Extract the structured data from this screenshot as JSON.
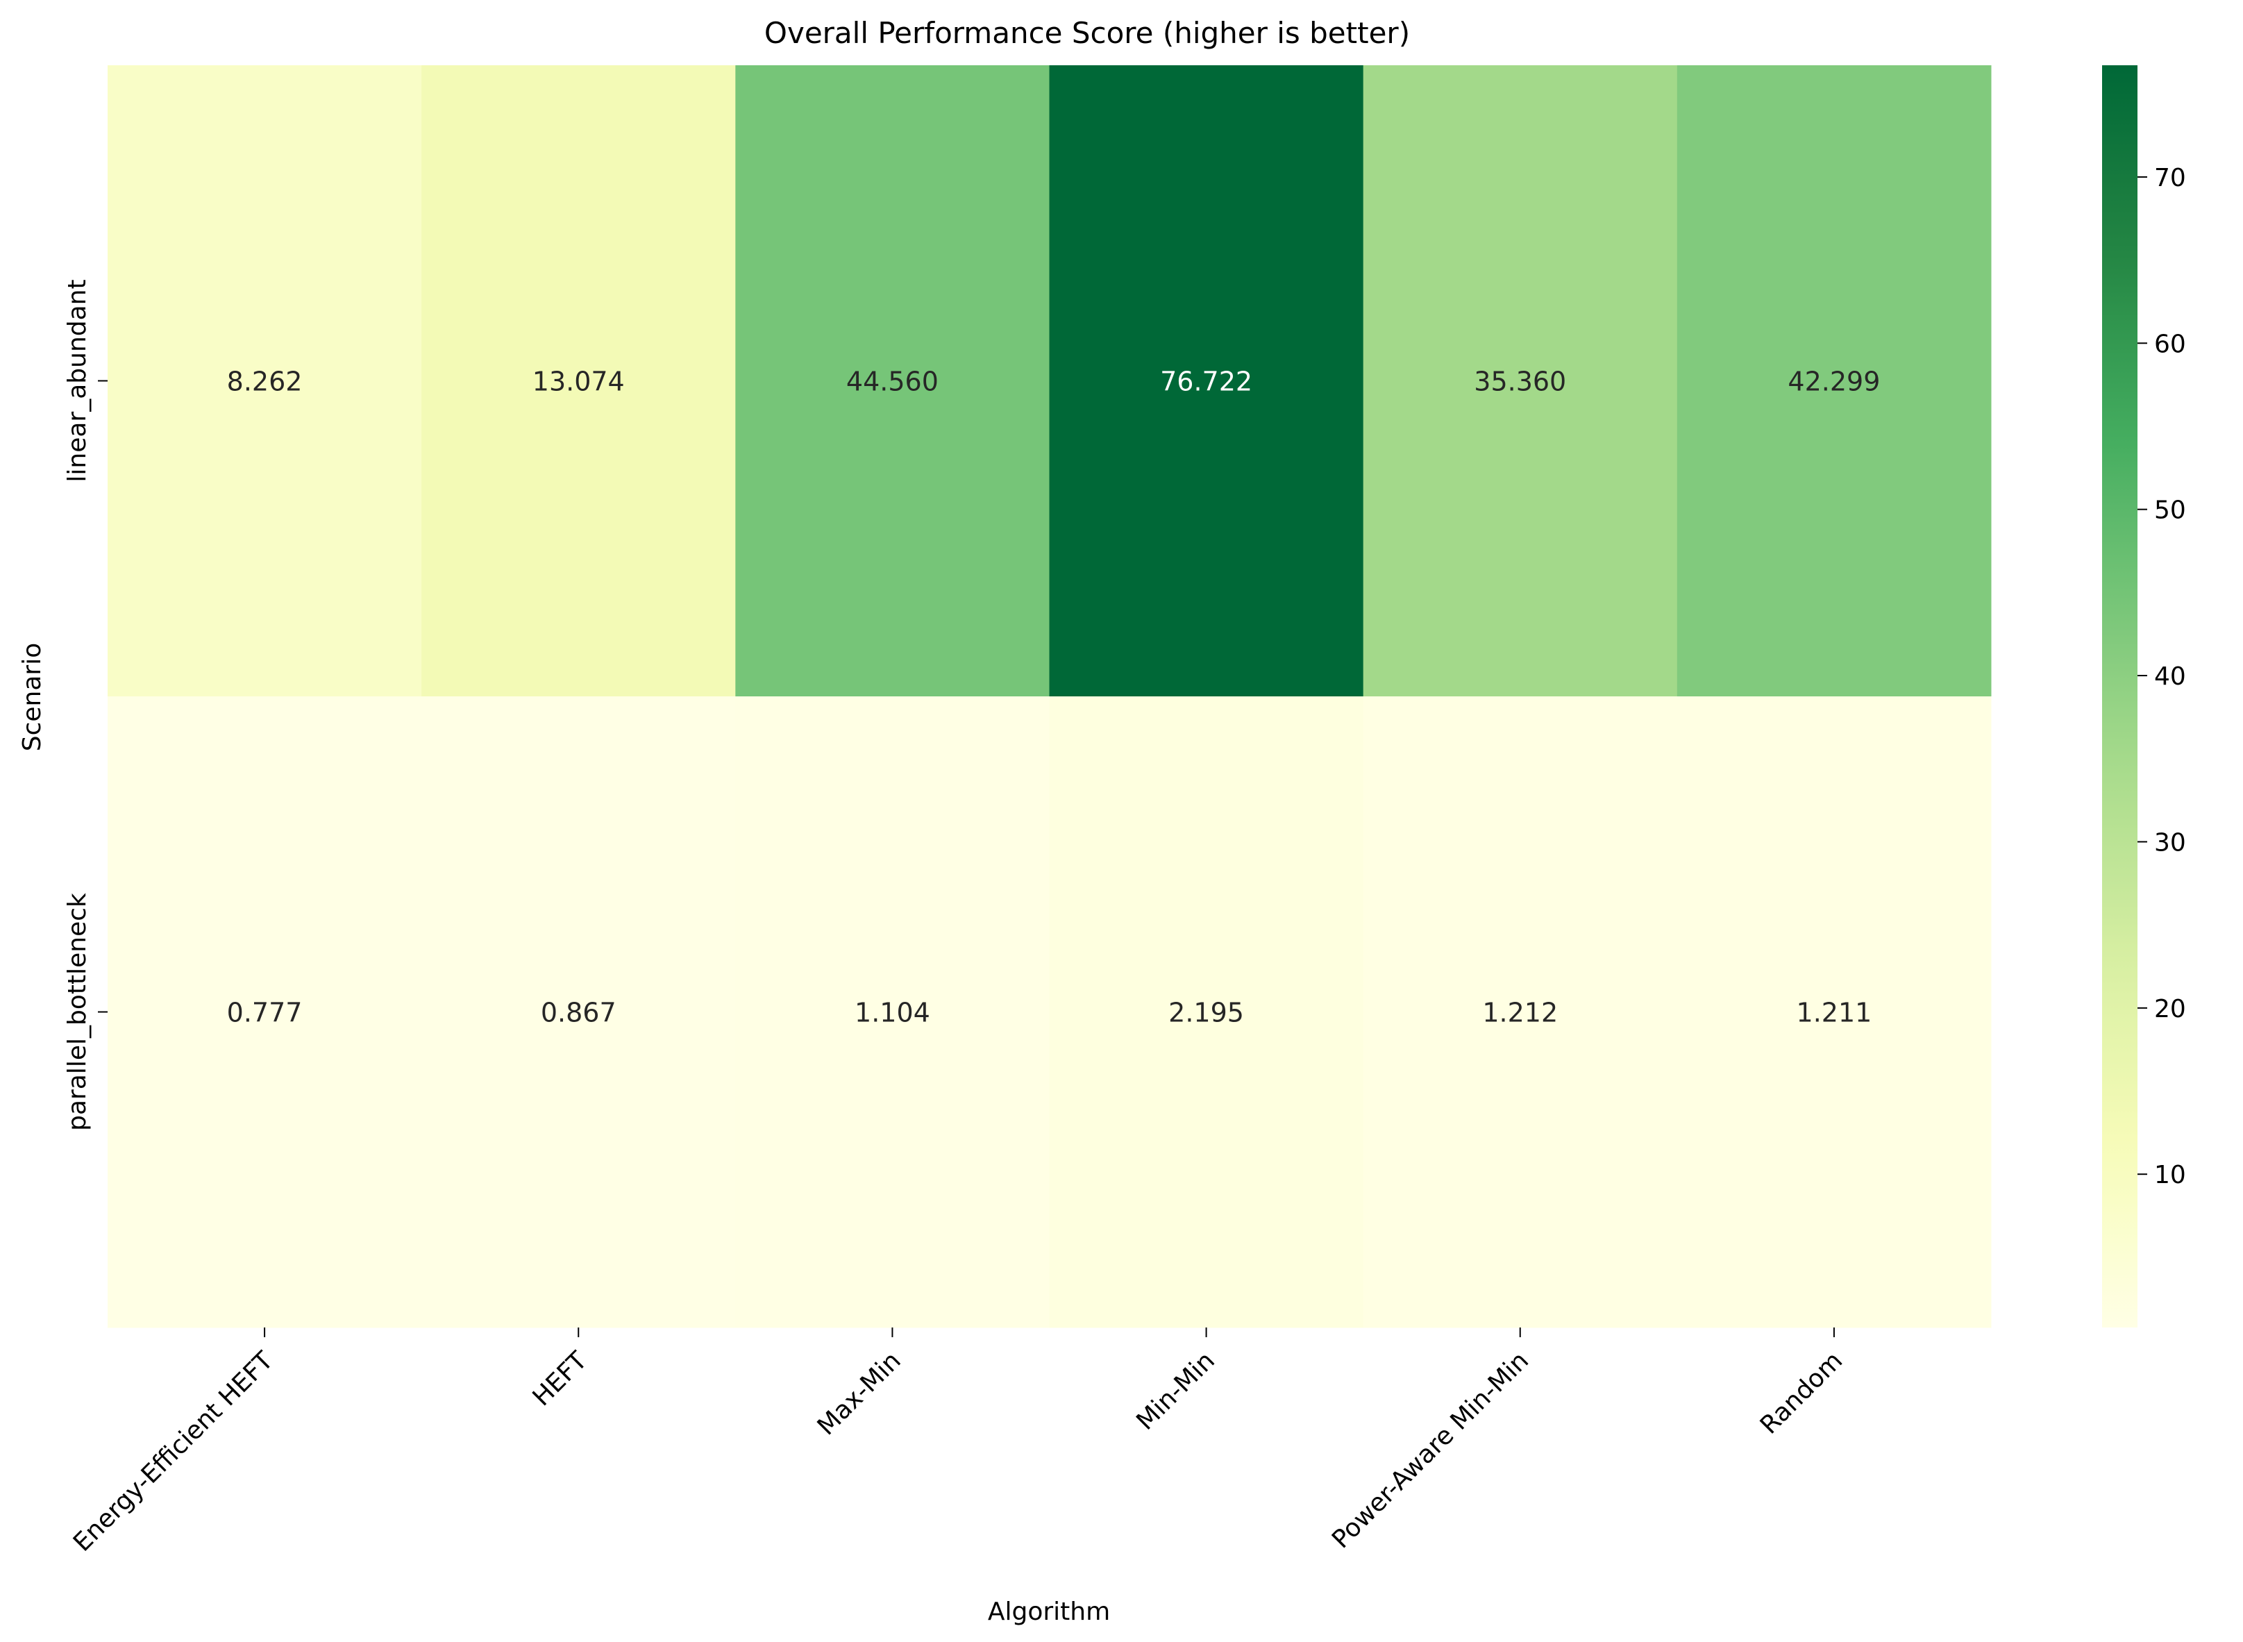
{
  "chart_data": {
    "type": "heatmap",
    "title": "Overall Performance Score (higher is better)",
    "xlabel": "Algorithm",
    "ylabel": "Scenario",
    "columns": [
      "Energy-Efficient HEFT",
      "HEFT",
      "Max-Min",
      "Min-Min",
      "Power-Aware Min-Min",
      "Random"
    ],
    "rows": [
      "linear_abundant",
      "parallel_bottleneck"
    ],
    "values": [
      [
        8.262,
        13.074,
        44.56,
        76.722,
        35.36,
        42.299
      ],
      [
        0.777,
        0.867,
        1.104,
        2.195,
        1.212,
        1.211
      ]
    ],
    "value_labels": [
      [
        "8.262",
        "13.074",
        "44.560",
        "76.722",
        "35.360",
        "42.299"
      ],
      [
        "0.777",
        "0.867",
        "1.104",
        "2.195",
        "1.212",
        "1.211"
      ]
    ],
    "colormap": "YlGn",
    "colorbar": {
      "range": [
        0.777,
        76.722
      ],
      "ticks": [
        10,
        20,
        30,
        40,
        50,
        60,
        70
      ]
    }
  }
}
